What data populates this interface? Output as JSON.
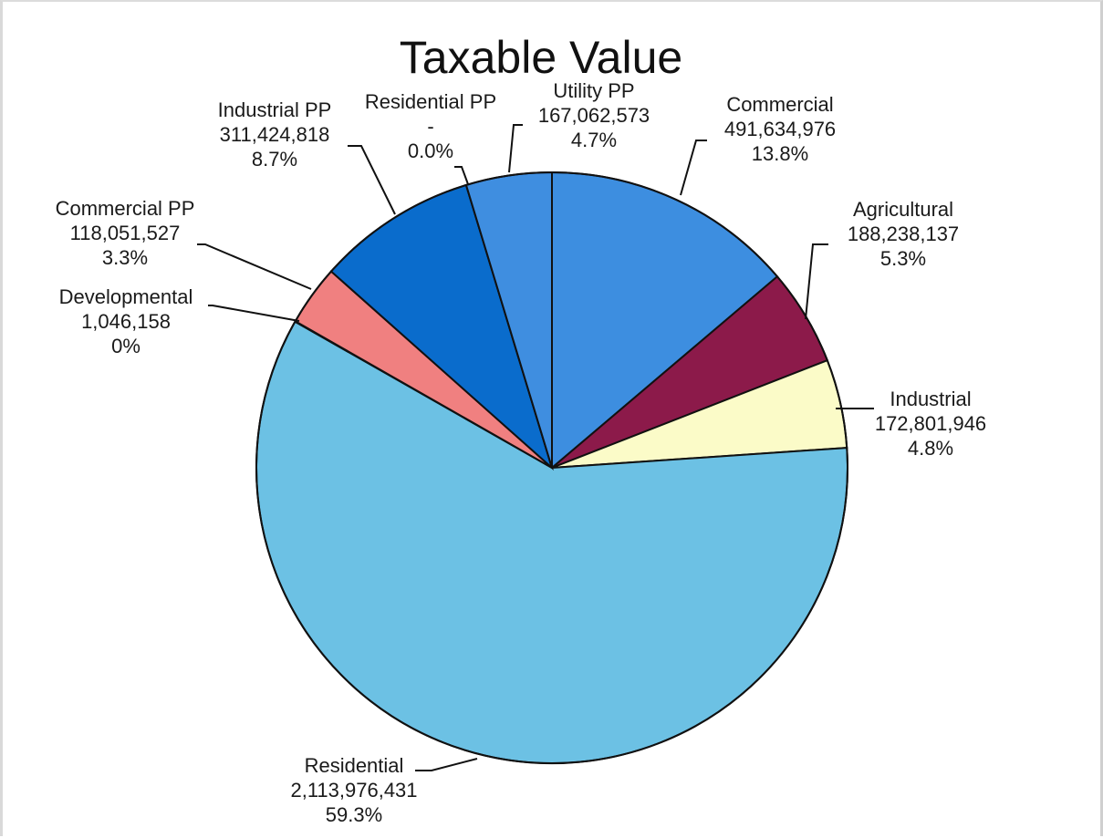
{
  "chart_data": {
    "type": "pie",
    "title": "Taxable Value",
    "start_angle_deg": 0,
    "direction": "clockwise",
    "slices": [
      {
        "label": "Commercial",
        "value": 491634976,
        "value_text": "491,634,976",
        "percent_text": "13.8%",
        "color": "#3d8ee0"
      },
      {
        "label": "Agricultural",
        "value": 188238137,
        "value_text": "188,238,137",
        "percent_text": "5.3%",
        "color": "#8c1a4a"
      },
      {
        "label": "Industrial",
        "value": 172801946,
        "value_text": "172,801,946",
        "percent_text": "4.8%",
        "color": "#fbfbc8"
      },
      {
        "label": "Residential",
        "value": 2113976431,
        "value_text": "2,113,976,431",
        "percent_text": "59.3%",
        "color": "#6cc1e4"
      },
      {
        "label": "Developmental",
        "value": 1046158,
        "value_text": "1,046,158",
        "percent_text": "0%",
        "color": "#bfe3f2"
      },
      {
        "label": "Commercial PP",
        "value": 118051527,
        "value_text": "118,051,527",
        "percent_text": "3.3%",
        "color": "#f08080"
      },
      {
        "label": "Industrial PP",
        "value": 311424818,
        "value_text": "311,424,818",
        "percent_text": "8.7%",
        "color": "#0a6ccc"
      },
      {
        "label": "Residential PP",
        "value": 0,
        "value_text": "-",
        "percent_text": "0.0%",
        "color": "#1f5fae"
      },
      {
        "label": "Utility PP",
        "value": 167062573,
        "value_text": "167,062,573",
        "percent_text": "4.7%",
        "color": "#3f8ee0"
      }
    ]
  }
}
